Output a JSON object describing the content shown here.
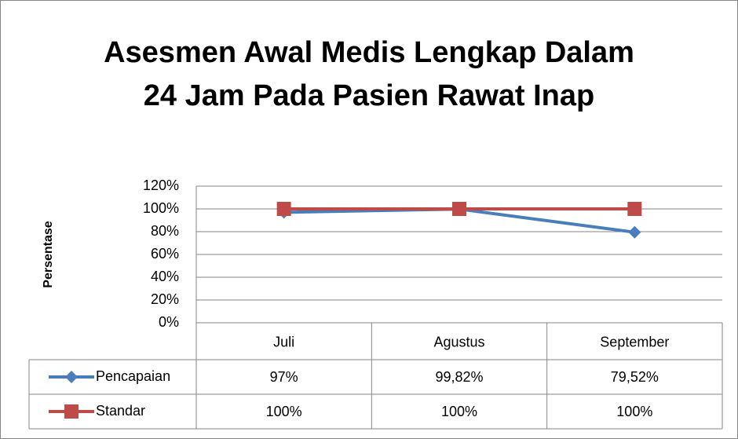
{
  "chart_data": {
    "type": "line",
    "title": "Asesmen Awal Medis Lengkap Dalam 24 Jam Pada Pasien Rawat Inap",
    "y_label": "Persentase",
    "categories": [
      "Juli",
      "Agustus",
      "September"
    ],
    "series": [
      {
        "name": "Pencapaian",
        "color": "#4a7ebb",
        "marker": "diamond",
        "values": [
          97,
          99.82,
          79.52
        ],
        "value_labels": [
          "97%",
          "99,82%",
          "79,52%"
        ]
      },
      {
        "name": "Standar",
        "color": "#be4b48",
        "marker": "square",
        "values": [
          100,
          100,
          100
        ],
        "value_labels": [
          "100%",
          "100%",
          "100%"
        ]
      }
    ],
    "ylim": [
      0,
      120
    ],
    "yticks": [
      {
        "value": 0,
        "label": "0%"
      },
      {
        "value": 20,
        "label": "20%"
      },
      {
        "value": 40,
        "label": "40%"
      },
      {
        "value": 60,
        "label": "60%"
      },
      {
        "value": 80,
        "label": "80%"
      },
      {
        "value": 100,
        "label": "100%"
      },
      {
        "value": 120,
        "label": "120%"
      }
    ],
    "grid": true,
    "data_table": true
  }
}
